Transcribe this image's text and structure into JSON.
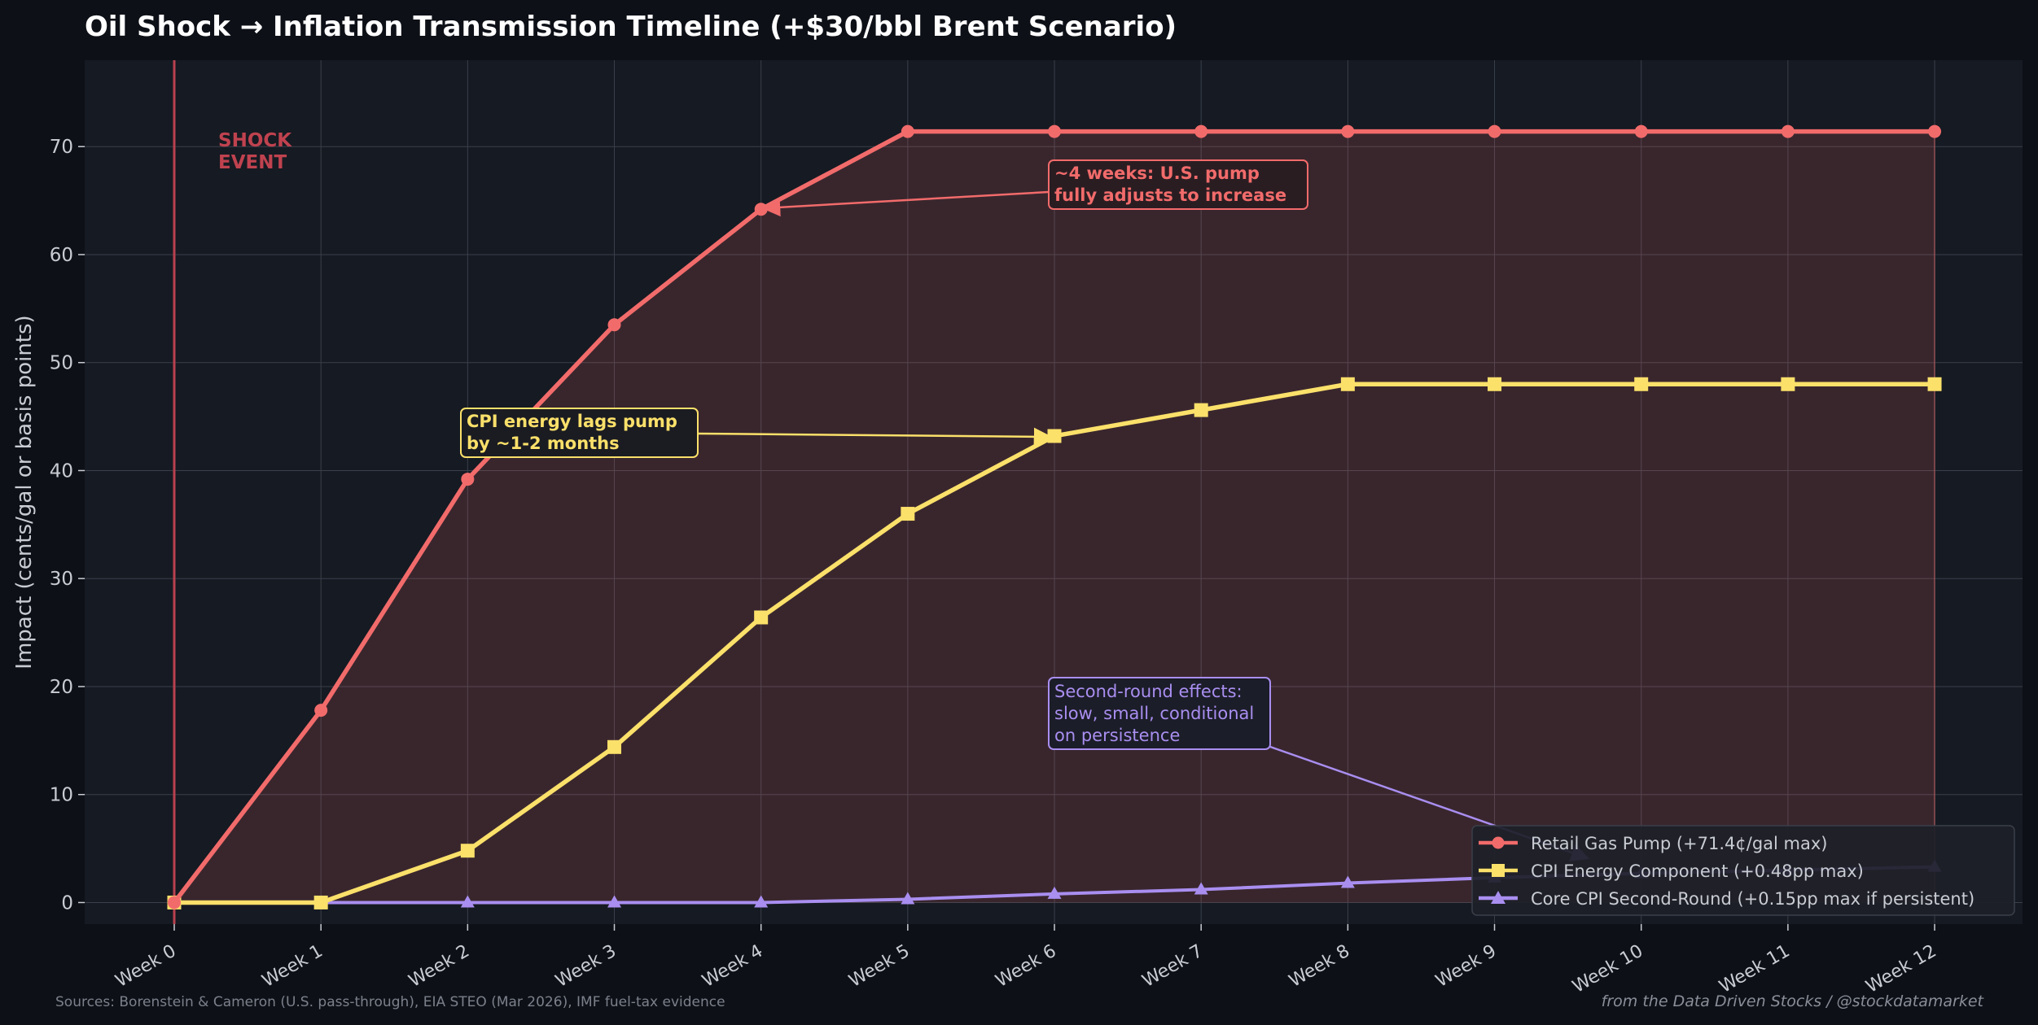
{
  "colors": {
    "background": "#0d1017",
    "plot_background": "#161a22",
    "grid": "#3a3f4a",
    "pump": "#f26b6b",
    "cpi_energy": "#fbe06a",
    "core_cpi": "#a98ef0",
    "shock_line": "#b8414e",
    "text": "#c9ccd3",
    "title": "#ffffff"
  },
  "footer": {
    "sources": "Sources: Borenstein & Cameron (U.S. pass-through), EIA STEO (Mar 2026), IMF fuel-tax evidence",
    "credit": "from the Data Driven Stocks / @stockdatamarket"
  },
  "chart_data": {
    "type": "line",
    "title": "Oil Shock → Inflation Transmission Timeline (+$30/bbl Brent Scenario)",
    "xlabel": "",
    "ylabel": "Impact (cents/gal or basis points)",
    "categories": [
      "Week 0",
      "Week 1",
      "Week 2",
      "Week 3",
      "Week 4",
      "Week 5",
      "Week 6",
      "Week 7",
      "Week 8",
      "Week 9",
      "Week 10",
      "Week 11",
      "Week 12"
    ],
    "ylim": [
      -2,
      78
    ],
    "yticks": [
      0,
      10,
      20,
      30,
      40,
      50,
      60,
      70
    ],
    "grid": true,
    "legend_position": "lower-right",
    "series": [
      {
        "name": "Retail Gas Pump (+71.4¢/gal max)",
        "marker": "circle",
        "color": "#f26b6b",
        "fill": true,
        "values": [
          0,
          17.8,
          39.2,
          53.5,
          64.2,
          71.4,
          71.4,
          71.4,
          71.4,
          71.4,
          71.4,
          71.4,
          71.4
        ]
      },
      {
        "name": "CPI Energy Component (+0.48pp max)",
        "marker": "square",
        "color": "#fbe06a",
        "fill": false,
        "values": [
          0,
          0,
          4.8,
          14.4,
          26.4,
          36.0,
          43.2,
          45.6,
          48.0,
          48.0,
          48.0,
          48.0,
          48.0
        ]
      },
      {
        "name": "Core CPI Second-Round (+0.15pp max if persistent)",
        "marker": "triangle",
        "color": "#a98ef0",
        "fill": false,
        "values": [
          0,
          0,
          0,
          0,
          0,
          0.3,
          0.8,
          1.2,
          1.8,
          2.3,
          2.7,
          3.0,
          3.3
        ]
      }
    ],
    "shock_event": {
      "x_index": 0,
      "label_line1": "SHOCK",
      "label_line2": "EVENT"
    },
    "annotations": [
      {
        "id": "pump",
        "line1": "~4 weeks: U.S. pump",
        "line2": "fully adjusts to increase",
        "target_index": 4,
        "target_value": 64.2
      },
      {
        "id": "cpi",
        "line1": "CPI energy lags pump",
        "line2": "by ~1-2 months",
        "target_index": 6,
        "target_value": 43.2
      },
      {
        "id": "core",
        "line1": "Second-round effects:",
        "line2": "slow, small, conditional",
        "line3": "on persistence",
        "target_index": 9.7,
        "target_value": 3.0
      }
    ]
  }
}
